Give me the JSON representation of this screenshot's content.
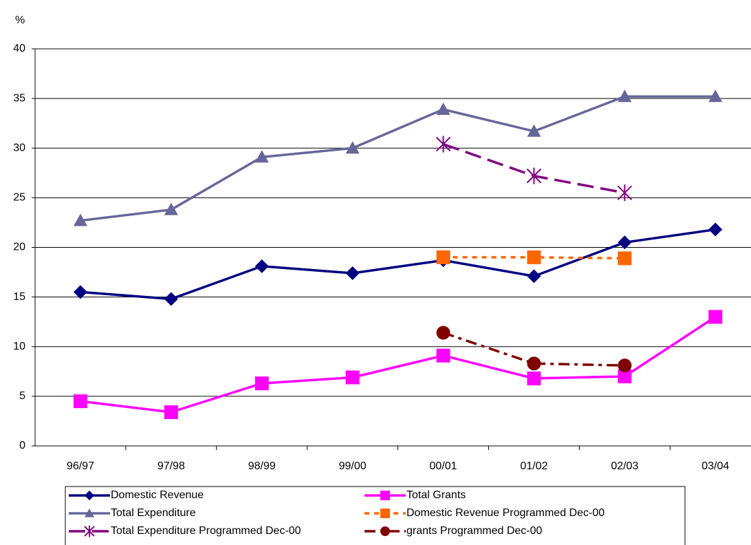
{
  "chart_data": {
    "type": "line",
    "y_label": "%",
    "categories": [
      "96/97",
      "97/98",
      "98/99",
      "99/00",
      "00/01",
      "01/02",
      "02/03",
      "03/04"
    ],
    "ylim": [
      0,
      40
    ],
    "yticks": [
      0,
      5,
      10,
      15,
      20,
      25,
      30,
      35,
      40
    ],
    "grid": true,
    "series": [
      {
        "name": "Domestic Revenue",
        "color": "#000080",
        "marker": "diamond",
        "dash": "solid",
        "values": [
          15.5,
          14.8,
          18.1,
          17.4,
          18.7,
          17.1,
          20.5,
          21.8
        ]
      },
      {
        "name": "Total Grants",
        "color": "#ff00ff",
        "marker": "square",
        "dash": "solid",
        "values": [
          4.5,
          3.4,
          6.3,
          6.9,
          9.1,
          6.8,
          7.0,
          13.0
        ]
      },
      {
        "name": "Total Expenditure",
        "color": "#666699",
        "marker": "triangle",
        "dash": "solid",
        "values": [
          22.7,
          23.8,
          29.1,
          30.0,
          33.9,
          31.7,
          35.2,
          35.2
        ]
      },
      {
        "name": "Domestic Revenue Programmed Dec-00",
        "color": "#ff6600",
        "marker": "square",
        "dash": "dotted",
        "values": [
          null,
          null,
          null,
          null,
          19.0,
          19.0,
          18.9,
          null
        ]
      },
      {
        "name": "Total Expenditure Programmed Dec-00",
        "color": "#800080",
        "marker": "star",
        "dash": "dashed",
        "values": [
          null,
          null,
          null,
          null,
          30.4,
          27.2,
          25.5,
          null
        ]
      },
      {
        "name": "grants Programmed Dec-00",
        "color": "#800000",
        "marker": "circle",
        "dash": "dashdot",
        "values": [
          null,
          null,
          null,
          null,
          11.4,
          8.3,
          8.1,
          null
        ]
      }
    ]
  }
}
